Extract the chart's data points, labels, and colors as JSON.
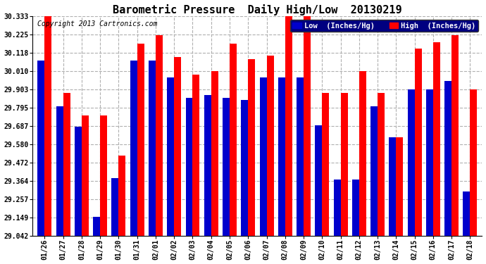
{
  "title": "Barometric Pressure  Daily High/Low  20130219",
  "copyright": "Copyright 2013 Cartronics.com",
  "legend_low": "Low  (Inches/Hg)",
  "legend_high": "High  (Inches/Hg)",
  "dates": [
    "01/26",
    "01/27",
    "01/28",
    "01/29",
    "01/30",
    "01/31",
    "02/01",
    "02/02",
    "02/03",
    "02/04",
    "02/05",
    "02/06",
    "02/07",
    "02/08",
    "02/09",
    "02/10",
    "02/11",
    "02/12",
    "02/13",
    "02/14",
    "02/15",
    "02/16",
    "02/17",
    "02/18"
  ],
  "low_values": [
    30.07,
    29.8,
    29.68,
    29.15,
    29.38,
    30.07,
    30.07,
    29.97,
    29.85,
    29.87,
    29.85,
    29.84,
    29.97,
    29.97,
    29.97,
    29.69,
    29.37,
    29.37,
    29.8,
    29.62,
    29.9,
    29.9,
    29.95,
    29.3
  ],
  "high_values": [
    30.33,
    29.88,
    29.75,
    29.75,
    29.51,
    30.17,
    30.22,
    30.09,
    29.99,
    30.01,
    30.17,
    30.08,
    30.1,
    30.33,
    30.33,
    29.88,
    29.88,
    30.01,
    29.88,
    29.62,
    30.14,
    30.18,
    30.22,
    29.9
  ],
  "yticks": [
    29.042,
    29.149,
    29.257,
    29.364,
    29.472,
    29.58,
    29.687,
    29.795,
    29.903,
    30.01,
    30.118,
    30.225,
    30.333
  ],
  "ymin": 29.042,
  "ymax": 30.333,
  "color_low": "#0000cc",
  "color_high": "#ff0000",
  "background_color": "#ffffff",
  "grid_color": "#b0b0b0",
  "bar_width": 0.38,
  "title_fontsize": 11,
  "copyright_fontsize": 7,
  "tick_fontsize": 7,
  "legend_fontsize": 7.5
}
